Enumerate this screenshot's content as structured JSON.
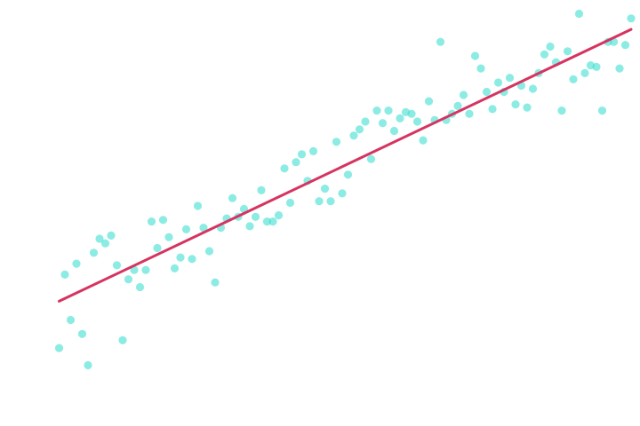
{
  "chart_data": {
    "type": "scatter",
    "title": "",
    "xlabel": "",
    "ylabel": "",
    "xlim": [
      0,
      100
    ],
    "ylim": [
      0,
      25
    ],
    "grid": false,
    "axes_visible": false,
    "colors": {
      "points": "#40E0D0",
      "trend_line": "#D63460"
    },
    "points_x": [
      1,
      2,
      3,
      4,
      5,
      6,
      7,
      8,
      9,
      10,
      11,
      12,
      13,
      14,
      15,
      16,
      17,
      18,
      19,
      20,
      21,
      22,
      23,
      24,
      25,
      26,
      27,
      28,
      29,
      30,
      31,
      32,
      33,
      34,
      35,
      36,
      37,
      38,
      39,
      40,
      41,
      42,
      43,
      44,
      45,
      46,
      47,
      48,
      49,
      50,
      51,
      52,
      53,
      54,
      55,
      56,
      57,
      58,
      59,
      60,
      61,
      62,
      63,
      64,
      65,
      66,
      67,
      68,
      69,
      70,
      71,
      72,
      73,
      74,
      75,
      76,
      77,
      78,
      79,
      80,
      81,
      82,
      83,
      84,
      85,
      86,
      87,
      88,
      89,
      90,
      91,
      92,
      93,
      94,
      95,
      96,
      97,
      98,
      99,
      100
    ],
    "points_y": [
      3.4,
      8.1,
      5.2,
      8.8,
      4.3,
      2.3,
      9.5,
      10.4,
      10.1,
      10.6,
      8.7,
      3.9,
      7.8,
      8.4,
      7.3,
      8.4,
      11.5,
      9.8,
      11.6,
      10.5,
      8.5,
      9.2,
      11.0,
      9.1,
      12.5,
      11.1,
      9.6,
      7.6,
      11.1,
      11.7,
      13.0,
      11.8,
      12.3,
      11.2,
      11.8,
      13.5,
      11.5,
      11.5,
      11.9,
      14.9,
      12.7,
      15.3,
      15.8,
      14.1,
      16.0,
      12.8,
      13.6,
      12.8,
      16.6,
      13.3,
      14.5,
      17.0,
      17.4,
      17.9,
      15.5,
      18.6,
      17.8,
      18.6,
      17.3,
      18.1,
      18.5,
      18.4,
      17.9,
      16.7,
      19.2,
      18.0,
      23.0,
      18.0,
      18.4,
      18.9,
      19.6,
      18.4,
      22.1,
      21.3,
      19.8,
      18.7,
      20.4,
      19.8,
      20.7,
      19.0,
      20.2,
      18.8,
      20.0,
      21.0,
      22.2,
      22.7,
      21.7,
      18.6,
      22.4,
      20.6,
      24.8,
      21.0,
      21.5,
      21.4,
      18.6,
      23.0,
      23.0,
      21.3,
      22.8,
      24.5
    ],
    "trend_line": {
      "x": [
        1,
        100
      ],
      "y": [
        6.4,
        23.8
      ]
    }
  }
}
